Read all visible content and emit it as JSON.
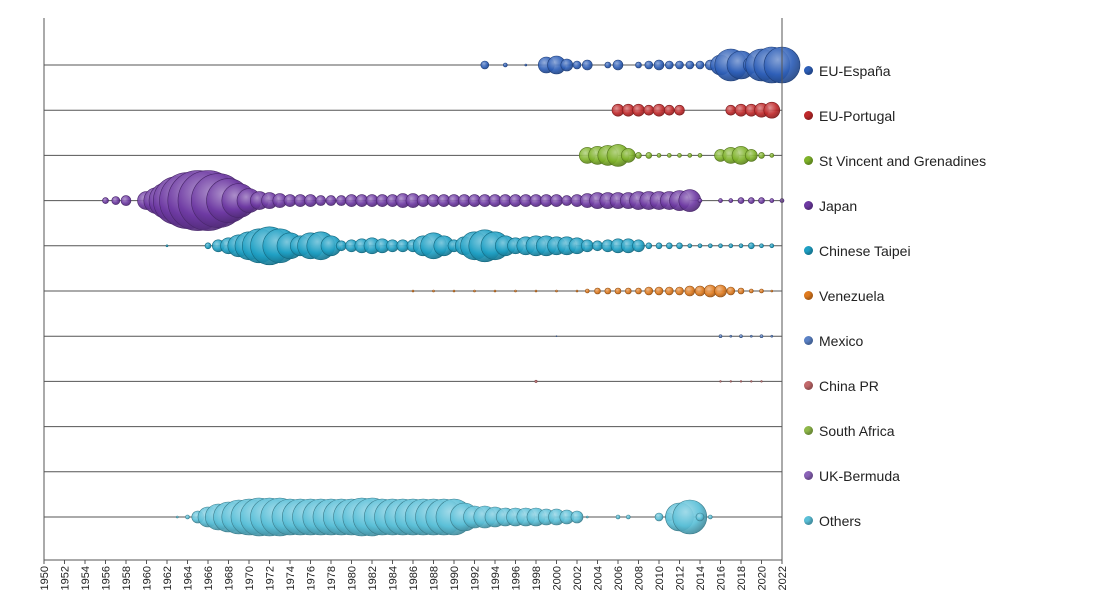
{
  "chart_data": {
    "type": "scatter",
    "subtype": "bubble-timeline",
    "title": "",
    "xlabel": "",
    "ylabel": "",
    "xlim": [
      1950,
      2022
    ],
    "x_ticks": [
      1950,
      1952,
      1954,
      1956,
      1958,
      1960,
      1962,
      1964,
      1966,
      1968,
      1970,
      1972,
      1974,
      1976,
      1978,
      1980,
      1982,
      1984,
      1986,
      1988,
      1990,
      1992,
      1994,
      1996,
      1998,
      2000,
      2002,
      2004,
      2006,
      2008,
      2010,
      2012,
      2014,
      2016,
      2018,
      2020,
      2022
    ],
    "legend_position": "right",
    "grid": false,
    "series": [
      {
        "name": "EU-España",
        "color": "#2e5fb8",
        "points": [
          [
            1993,
            4
          ],
          [
            1995,
            2
          ],
          [
            1997,
            1
          ],
          [
            1999,
            8
          ],
          [
            2000,
            9
          ],
          [
            2001,
            6
          ],
          [
            2002,
            4
          ],
          [
            2003,
            5
          ],
          [
            2005,
            3
          ],
          [
            2006,
            5
          ],
          [
            2008,
            3
          ],
          [
            2009,
            4
          ],
          [
            2010,
            5
          ],
          [
            2011,
            4
          ],
          [
            2012,
            4
          ],
          [
            2013,
            4
          ],
          [
            2014,
            4
          ],
          [
            2015,
            5
          ],
          [
            2016,
            10
          ],
          [
            2017,
            16
          ],
          [
            2018,
            14
          ],
          [
            2019,
            8
          ],
          [
            2020,
            16
          ],
          [
            2021,
            18
          ],
          [
            2022,
            18
          ]
        ]
      },
      {
        "name": "EU-Portugal",
        "color": "#c0292b",
        "points": [
          [
            2006,
            6
          ],
          [
            2007,
            6
          ],
          [
            2008,
            6
          ],
          [
            2009,
            5
          ],
          [
            2010,
            6
          ],
          [
            2011,
            5
          ],
          [
            2012,
            5
          ],
          [
            2017,
            5
          ],
          [
            2018,
            6
          ],
          [
            2019,
            6
          ],
          [
            2020,
            7
          ],
          [
            2021,
            8
          ]
        ]
      },
      {
        "name": "St Vincent and Grenadines",
        "color": "#7fb32a",
        "points": [
          [
            2003,
            8
          ],
          [
            2004,
            9
          ],
          [
            2005,
            10
          ],
          [
            2006,
            11
          ],
          [
            2007,
            7
          ],
          [
            2008,
            3
          ],
          [
            2009,
            3
          ],
          [
            2010,
            2
          ],
          [
            2011,
            2
          ],
          [
            2012,
            2
          ],
          [
            2013,
            2
          ],
          [
            2014,
            2
          ],
          [
            2016,
            6
          ],
          [
            2017,
            8
          ],
          [
            2018,
            9
          ],
          [
            2019,
            6
          ],
          [
            2020,
            3
          ],
          [
            2021,
            2
          ]
        ]
      },
      {
        "name": "Japan",
        "color": "#6e3aa3",
        "points": [
          [
            1956,
            3
          ],
          [
            1957,
            4
          ],
          [
            1958,
            5
          ],
          [
            1960,
            9
          ],
          [
            1961,
            13
          ],
          [
            1962,
            18
          ],
          [
            1963,
            24
          ],
          [
            1964,
            28
          ],
          [
            1965,
            30
          ],
          [
            1966,
            30
          ],
          [
            1967,
            27
          ],
          [
            1968,
            22
          ],
          [
            1969,
            17
          ],
          [
            1970,
            12
          ],
          [
            1971,
            9
          ],
          [
            1972,
            8
          ],
          [
            1973,
            7
          ],
          [
            1974,
            6
          ],
          [
            1975,
            6
          ],
          [
            1976,
            6
          ],
          [
            1977,
            5
          ],
          [
            1978,
            5
          ],
          [
            1979,
            5
          ],
          [
            1980,
            6
          ],
          [
            1981,
            6
          ],
          [
            1982,
            6
          ],
          [
            1983,
            6
          ],
          [
            1984,
            6
          ],
          [
            1985,
            7
          ],
          [
            1986,
            7
          ],
          [
            1987,
            6
          ],
          [
            1988,
            6
          ],
          [
            1989,
            6
          ],
          [
            1990,
            6
          ],
          [
            1991,
            6
          ],
          [
            1992,
            6
          ],
          [
            1993,
            6
          ],
          [
            1994,
            6
          ],
          [
            1995,
            6
          ],
          [
            1996,
            6
          ],
          [
            1997,
            6
          ],
          [
            1998,
            6
          ],
          [
            1999,
            6
          ],
          [
            2000,
            6
          ],
          [
            2001,
            5
          ],
          [
            2002,
            6
          ],
          [
            2003,
            7
          ],
          [
            2004,
            8
          ],
          [
            2005,
            8
          ],
          [
            2006,
            8
          ],
          [
            2007,
            8
          ],
          [
            2008,
            9
          ],
          [
            2009,
            9
          ],
          [
            2010,
            9
          ],
          [
            2011,
            9
          ],
          [
            2012,
            10
          ],
          [
            2013,
            11
          ],
          [
            2014,
            2
          ],
          [
            2016,
            2
          ],
          [
            2017,
            2
          ],
          [
            2018,
            3
          ],
          [
            2019,
            3
          ],
          [
            2020,
            3
          ],
          [
            2021,
            2
          ],
          [
            2022,
            2
          ]
        ]
      },
      {
        "name": "Chinese Taipei",
        "color": "#1fa0c4",
        "points": [
          [
            1962,
            1
          ],
          [
            1966,
            3
          ],
          [
            1967,
            6
          ],
          [
            1968,
            8
          ],
          [
            1969,
            11
          ],
          [
            1970,
            14
          ],
          [
            1971,
            17
          ],
          [
            1972,
            19
          ],
          [
            1973,
            17
          ],
          [
            1974,
            13
          ],
          [
            1975,
            10
          ],
          [
            1976,
            13
          ],
          [
            1977,
            14
          ],
          [
            1978,
            10
          ],
          [
            1979,
            5
          ],
          [
            1980,
            6
          ],
          [
            1981,
            7
          ],
          [
            1982,
            8
          ],
          [
            1983,
            7
          ],
          [
            1984,
            6
          ],
          [
            1985,
            6
          ],
          [
            1986,
            6
          ],
          [
            1987,
            10
          ],
          [
            1988,
            13
          ],
          [
            1989,
            10
          ],
          [
            1990,
            6
          ],
          [
            1991,
            9
          ],
          [
            1992,
            14
          ],
          [
            1993,
            16
          ],
          [
            1994,
            14
          ],
          [
            1995,
            10
          ],
          [
            1996,
            8
          ],
          [
            1997,
            9
          ],
          [
            1998,
            10
          ],
          [
            1999,
            10
          ],
          [
            2000,
            9
          ],
          [
            2001,
            9
          ],
          [
            2002,
            8
          ],
          [
            2003,
            6
          ],
          [
            2004,
            5
          ],
          [
            2005,
            6
          ],
          [
            2006,
            7
          ],
          [
            2007,
            7
          ],
          [
            2008,
            6
          ],
          [
            2009,
            3
          ],
          [
            2010,
            3
          ],
          [
            2011,
            3
          ],
          [
            2012,
            3
          ],
          [
            2013,
            2
          ],
          [
            2014,
            2
          ],
          [
            2015,
            2
          ],
          [
            2016,
            2
          ],
          [
            2017,
            2
          ],
          [
            2018,
            2
          ],
          [
            2019,
            3
          ],
          [
            2020,
            2
          ],
          [
            2021,
            2
          ]
        ]
      },
      {
        "name": "Venezuela",
        "color": "#e07b1f",
        "points": [
          [
            1986,
            1
          ],
          [
            1988,
            1
          ],
          [
            1990,
            1
          ],
          [
            1992,
            1
          ],
          [
            1994,
            1
          ],
          [
            1996,
            1
          ],
          [
            1998,
            1
          ],
          [
            2000,
            1
          ],
          [
            2002,
            1
          ],
          [
            2003,
            2
          ],
          [
            2004,
            3
          ],
          [
            2005,
            3
          ],
          [
            2006,
            3
          ],
          [
            2007,
            3
          ],
          [
            2008,
            3
          ],
          [
            2009,
            4
          ],
          [
            2010,
            4
          ],
          [
            2011,
            4
          ],
          [
            2012,
            4
          ],
          [
            2013,
            5
          ],
          [
            2014,
            5
          ],
          [
            2015,
            6
          ],
          [
            2016,
            6
          ],
          [
            2017,
            4
          ],
          [
            2018,
            3
          ],
          [
            2019,
            2
          ],
          [
            2020,
            2
          ],
          [
            2021,
            1
          ]
        ]
      },
      {
        "name": "Mexico",
        "color": "#5b82c6",
        "points": [
          [
            2000,
            0.5
          ],
          [
            2016,
            1.5
          ],
          [
            2017,
            1
          ],
          [
            2018,
            1.5
          ],
          [
            2019,
            1
          ],
          [
            2020,
            1.5
          ],
          [
            2021,
            1
          ]
        ]
      },
      {
        "name": "China PR",
        "color": "#c2696b",
        "points": [
          [
            1998,
            1.2
          ],
          [
            2016,
            0.8
          ],
          [
            2017,
            0.8
          ],
          [
            2018,
            0.8
          ],
          [
            2019,
            0.8
          ],
          [
            2020,
            0.8
          ]
        ]
      },
      {
        "name": "South Africa",
        "color": "#8fb84a",
        "points": []
      },
      {
        "name": "UK-Bermuda",
        "color": "#8b63b8",
        "points": []
      },
      {
        "name": "Others",
        "color": "#5bc0d8",
        "points": [
          [
            1963,
            1
          ],
          [
            1964,
            2
          ],
          [
            1965,
            6
          ],
          [
            1966,
            10
          ],
          [
            1967,
            13
          ],
          [
            1968,
            15
          ],
          [
            1969,
            17
          ],
          [
            1970,
            18
          ],
          [
            1971,
            19
          ],
          [
            1972,
            19
          ],
          [
            1973,
            19
          ],
          [
            1974,
            18
          ],
          [
            1975,
            18
          ],
          [
            1976,
            18
          ],
          [
            1977,
            18
          ],
          [
            1978,
            18
          ],
          [
            1979,
            18
          ],
          [
            1980,
            18
          ],
          [
            1981,
            19
          ],
          [
            1982,
            19
          ],
          [
            1983,
            18
          ],
          [
            1984,
            18
          ],
          [
            1985,
            18
          ],
          [
            1986,
            18
          ],
          [
            1987,
            18
          ],
          [
            1988,
            18
          ],
          [
            1989,
            18
          ],
          [
            1990,
            18
          ],
          [
            1991,
            14
          ],
          [
            1992,
            11
          ],
          [
            1993,
            11
          ],
          [
            1994,
            10
          ],
          [
            1995,
            9
          ],
          [
            1996,
            9
          ],
          [
            1997,
            9
          ],
          [
            1998,
            9
          ],
          [
            1999,
            8
          ],
          [
            2000,
            8
          ],
          [
            2001,
            7
          ],
          [
            2002,
            6
          ],
          [
            2003,
            1
          ],
          [
            2006,
            2
          ],
          [
            2007,
            2
          ],
          [
            2010,
            4
          ],
          [
            2011,
            4
          ],
          [
            2012,
            14
          ],
          [
            2013,
            17
          ],
          [
            2014,
            4
          ],
          [
            2015,
            2
          ]
        ]
      }
    ]
  }
}
